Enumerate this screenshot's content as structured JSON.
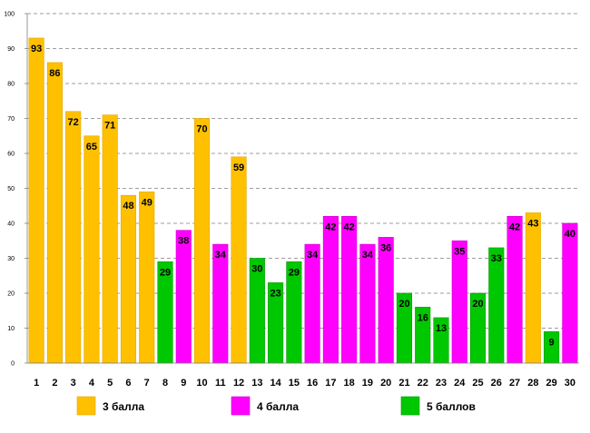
{
  "chart_data": {
    "type": "bar",
    "title": "",
    "xlabel": "",
    "ylabel": "",
    "ylim": [
      0,
      100
    ],
    "yticks": [
      0,
      10,
      20,
      30,
      40,
      50,
      60,
      70,
      80,
      90,
      100
    ],
    "grid": "horizontal dashed",
    "categories": [
      "1",
      "2",
      "3",
      "4",
      "5",
      "6",
      "7",
      "8",
      "9",
      "10",
      "11",
      "12",
      "13",
      "14",
      "15",
      "16",
      "17",
      "18",
      "19",
      "20",
      "21",
      "22",
      "23",
      "24",
      "25",
      "26",
      "27",
      "28",
      "29",
      "30"
    ],
    "values": [
      93,
      86,
      72,
      65,
      71,
      48,
      49,
      29,
      38,
      70,
      34,
      59,
      30,
      23,
      29,
      34,
      42,
      42,
      34,
      36,
      20,
      16,
      13,
      35,
      20,
      33,
      42,
      43,
      9,
      40
    ],
    "groups": [
      3,
      3,
      3,
      3,
      3,
      3,
      3,
      5,
      4,
      3,
      4,
      3,
      5,
      5,
      5,
      4,
      4,
      4,
      4,
      4,
      5,
      5,
      5,
      4,
      5,
      5,
      4,
      3,
      5,
      4
    ],
    "legend": [
      {
        "group": 3,
        "label": "3 балла",
        "color": "#FFC000"
      },
      {
        "group": 4,
        "label": "4 балла",
        "color": "#FF00FF"
      },
      {
        "group": 5,
        "label": "5 баллов",
        "color": "#00C800"
      }
    ],
    "legend_position": "bottom"
  }
}
